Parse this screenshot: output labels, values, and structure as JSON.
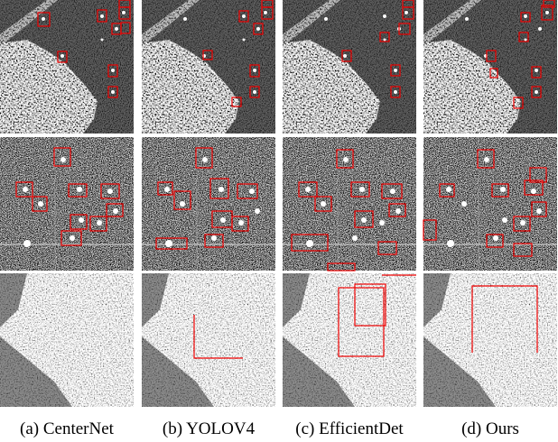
{
  "figure": {
    "captions": [
      "(a) CenterNet",
      "(b) YOLOV4",
      "(c) EfficientDet",
      "(d) Ours"
    ]
  }
}
